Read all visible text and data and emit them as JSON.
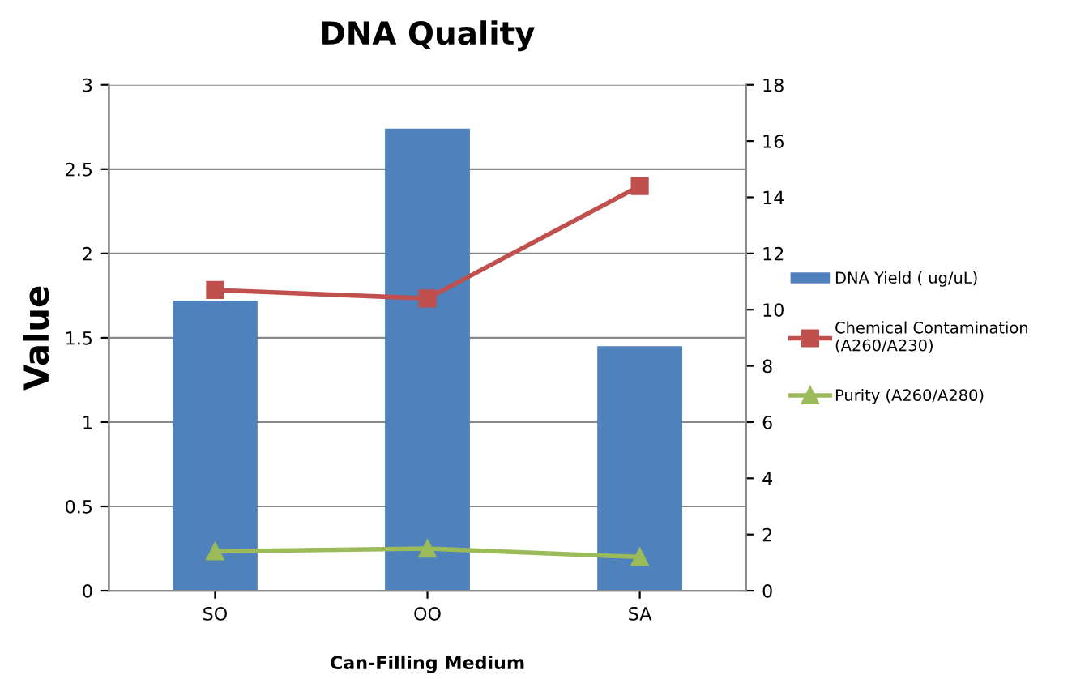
{
  "chart_data": {
    "type": "bar",
    "title": "DNA Quality",
    "xlabel": "Can-Filling Medium",
    "ylabel": "Value",
    "categories": [
      "SO",
      "OO",
      "SA"
    ],
    "series": [
      {
        "name": "DNA Yield ( ug/uL)",
        "color": "#4f81bd",
        "values": [
          1.72,
          2.74,
          1.45
        ]
      },
      {
        "name": "Chemical Contamination\n(A260/A230)",
        "type": "line",
        "axis": "y2",
        "marker": "square",
        "color": "#c0504d",
        "values": [
          10.7,
          10.4,
          14.4
        ]
      },
      {
        "name": "Purity (A260/A280)",
        "type": "line",
        "axis": "y2",
        "marker": "triangle",
        "color": "#9bbb59",
        "values": [
          1.4,
          1.5,
          1.2
        ]
      }
    ],
    "ylim": [
      0,
      3
    ],
    "yticks": [
      0,
      0.5,
      1,
      1.5,
      2,
      2.5,
      3
    ],
    "y2lim": [
      0,
      18
    ],
    "y2ticks": [
      0,
      2,
      4,
      6,
      8,
      10,
      12,
      14,
      16,
      18
    ],
    "grid": "y",
    "legend": "right"
  }
}
